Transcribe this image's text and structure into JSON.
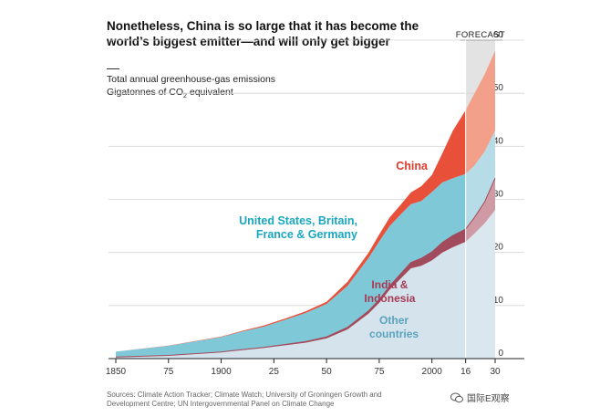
{
  "header": {
    "title": "Nonetheless, China is so large that it has become the world’s biggest emitter—and will only get bigger",
    "subtitle_line1": "Total annual greenhouse-gas emissions",
    "subtitle_line2_prefix": "Gigatonnes of CO",
    "subtitle_line2_sub": "2",
    "subtitle_line2_suffix": " equivalent"
  },
  "footer": {
    "sources": "Sources: Climate Action Tracker; Climate Watch; University of Groningen Growth and Development Centre; UN Intergovernmental Panel on Climate Change",
    "watermark": "国际E观察"
  },
  "colors": {
    "china": "#e8503a",
    "china_forecast": "#f3a08a",
    "west": "#7fc8d8",
    "west_forecast": "#b6dde7",
    "india": "#a24b5c",
    "india_forecast": "#cf9aa3",
    "other": "#d4e3ec",
    "other_forecast": "#dbe7ee",
    "forecast_band": "#e3e3e3",
    "china_label": "#e03a2e",
    "west_label": "#1aa6bf",
    "india_label": "#a83a53",
    "other_label": "#5aa3bd"
  },
  "chart_data": {
    "type": "area",
    "stacked": true,
    "title": "Nonetheless, China is so large that it has become the world’s biggest emitter—and will only get bigger",
    "ylabel": "Gigatonnes of CO2 equivalent",
    "xlim": [
      1850,
      2030
    ],
    "ylim": [
      0,
      60
    ],
    "x_ticks": [
      1850,
      1875,
      1900,
      1925,
      1950,
      1975,
      2000,
      2016,
      2030
    ],
    "x_tick_labels": [
      "1850",
      "75",
      "1900",
      "25",
      "50",
      "75",
      "2000",
      "16",
      "30"
    ],
    "y_ticks": [
      0,
      10,
      20,
      30,
      40,
      50,
      60
    ],
    "forecast": {
      "label": "FORECAST",
      "start": 2016,
      "end": 2030
    },
    "x": [
      1850,
      1875,
      1900,
      1910,
      1920,
      1930,
      1940,
      1950,
      1960,
      1970,
      1975,
      1980,
      1985,
      1990,
      1995,
      2000,
      2005,
      2010,
      2016,
      2020,
      2025,
      2030
    ],
    "series": [
      {
        "name": "Other countries",
        "label_lines": [
          "Other",
          "countries"
        ],
        "values": [
          0.3,
          0.6,
          1.2,
          1.6,
          2.0,
          2.5,
          3.0,
          3.8,
          5.5,
          8.5,
          10.5,
          13.0,
          15.0,
          17.0,
          17.5,
          18.5,
          20.0,
          21.0,
          22.0,
          23.5,
          25.5,
          28.0
        ]
      },
      {
        "name": "India & Indonesia",
        "label_lines": [
          "India &",
          "Indonesia"
        ],
        "values": [
          0.0,
          0.0,
          0.05,
          0.1,
          0.1,
          0.15,
          0.2,
          0.3,
          0.4,
          0.5,
          0.6,
          0.7,
          0.9,
          1.1,
          1.4,
          1.6,
          1.9,
          2.2,
          2.4,
          3.0,
          4.0,
          6.0
        ]
      },
      {
        "name": "United States, Britain, France & Germany",
        "label_lines": [
          "United States, Britain,",
          "France & Germany"
        ],
        "values": [
          1.0,
          1.8,
          2.8,
          3.4,
          3.9,
          4.6,
          5.4,
          6.2,
          7.8,
          10.0,
          11.0,
          11.3,
          11.2,
          11.0,
          10.8,
          11.3,
          11.3,
          10.8,
          10.4,
          9.8,
          9.5,
          9.0
        ]
      },
      {
        "name": "China",
        "label_lines": [
          "China"
        ],
        "values": [
          0.0,
          0.05,
          0.1,
          0.15,
          0.2,
          0.25,
          0.3,
          0.4,
          0.8,
          1.0,
          1.3,
          1.6,
          1.8,
          2.2,
          2.8,
          3.2,
          5.5,
          9.0,
          12.0,
          13.5,
          14.5,
          15.0
        ]
      }
    ]
  }
}
